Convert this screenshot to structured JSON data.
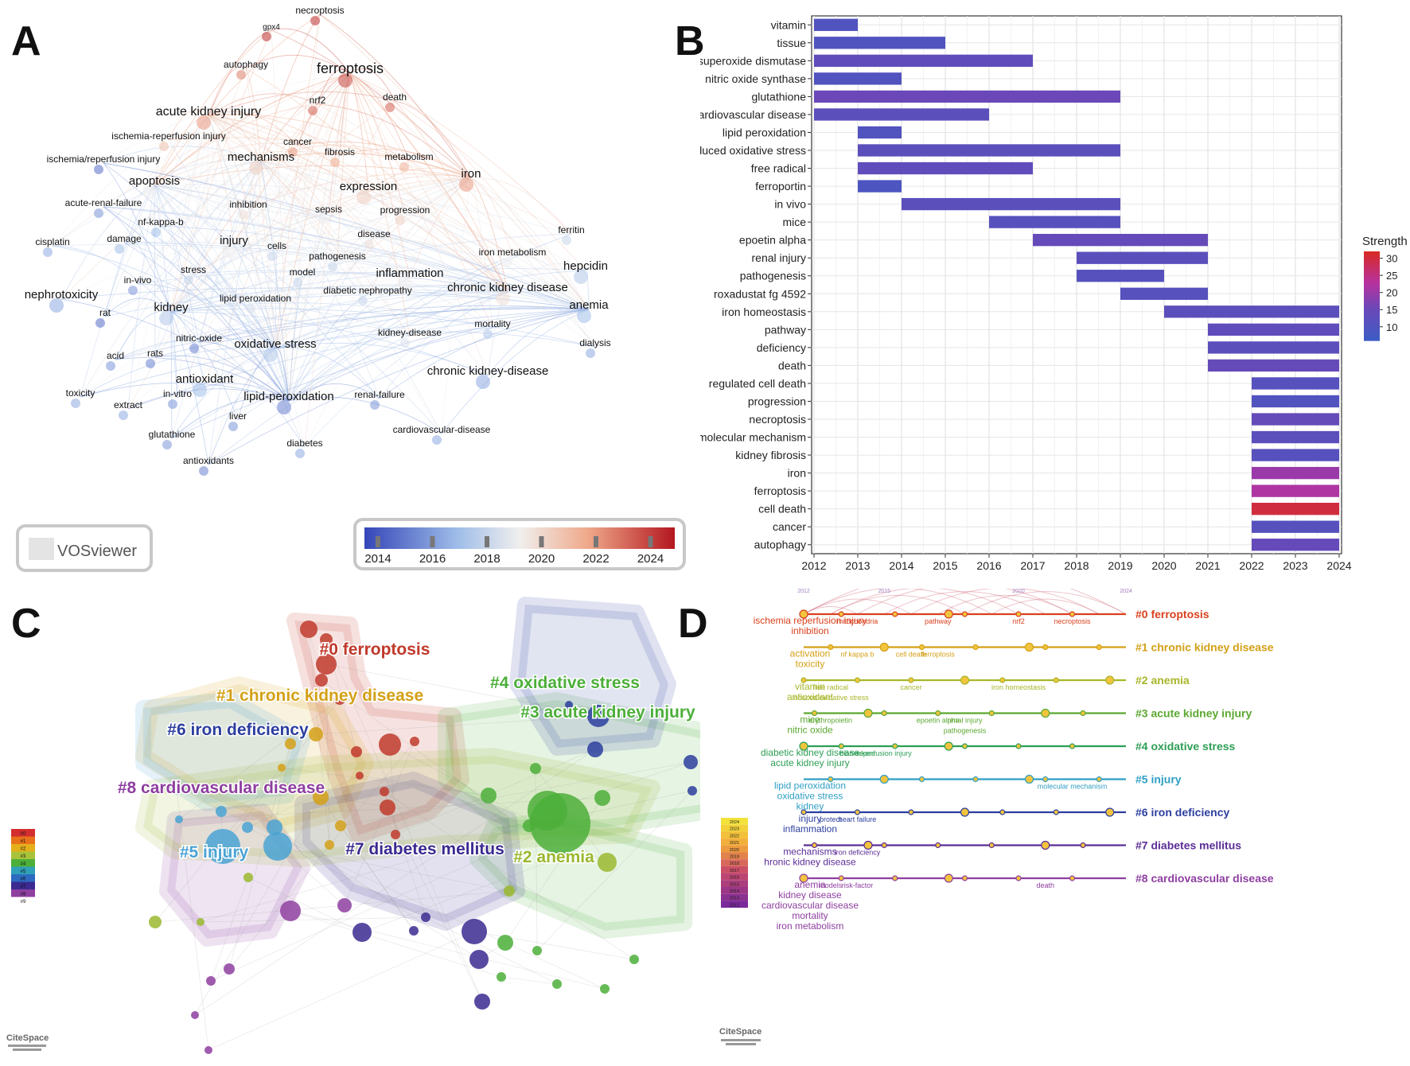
{
  "panels": {
    "A": "A",
    "B": "B",
    "C": "C",
    "D": "D"
  },
  "chart_data": [
    {
      "type": "network",
      "panel": "A",
      "tool": "VOSviewer",
      "colorbar": {
        "ticks": [
          "2014",
          "2016",
          "2018",
          "2020",
          "2022",
          "2024"
        ]
      },
      "nodes": [
        {
          "label": "necroptosis",
          "year": 2023.5
        },
        {
          "label": "gpx4",
          "year": 2023.5
        },
        {
          "label": "autophagy",
          "year": 2022
        },
        {
          "label": "ferroptosis",
          "year": 2023
        },
        {
          "label": "nrf2",
          "year": 2022.5
        },
        {
          "label": "death",
          "year": 2022.5
        },
        {
          "label": "acute kidney injury",
          "year": 2021.5
        },
        {
          "label": "ischemia-reperfusion injury",
          "year": 2020.5
        },
        {
          "label": "cancer",
          "year": 2021.5
        },
        {
          "label": "ischemia/reperfusion injury",
          "year": 2015
        },
        {
          "label": "mechanisms",
          "year": 2020
        },
        {
          "label": "fibrosis",
          "year": 2021
        },
        {
          "label": "metabolism",
          "year": 2021
        },
        {
          "label": "iron",
          "year": 2021.5
        },
        {
          "label": "apoptosis",
          "year": 2019
        },
        {
          "label": "expression",
          "year": 2020
        },
        {
          "label": "acute-renal-failure",
          "year": 2016
        },
        {
          "label": "inhibition",
          "year": 2019.5
        },
        {
          "label": "sepsis",
          "year": 2019
        },
        {
          "label": "progression",
          "year": 2020
        },
        {
          "label": "nf-kappa-b",
          "year": 2017
        },
        {
          "label": "ferritin",
          "year": 2018
        },
        {
          "label": "cisplatin",
          "year": 2016.5
        },
        {
          "label": "damage",
          "year": 2017
        },
        {
          "label": "injury",
          "year": 2019
        },
        {
          "label": "cells",
          "year": 2018
        },
        {
          "label": "disease",
          "year": 2019.5
        },
        {
          "label": "iron metabolism",
          "year": 2019
        },
        {
          "label": "pathogenesis",
          "year": 2018
        },
        {
          "label": "hepcidin",
          "year": 2017.5
        },
        {
          "label": "stress",
          "year": 2018
        },
        {
          "label": "inflammation",
          "year": 2019
        },
        {
          "label": "in-vivo",
          "year": 2016
        },
        {
          "label": "model",
          "year": 2018
        },
        {
          "label": "nephrotoxicity",
          "year": 2016.5
        },
        {
          "label": "chronic kidney disease",
          "year": 2019.5
        },
        {
          "label": "lipid peroxidation",
          "year": 2018.5
        },
        {
          "label": "diabetic nephropathy",
          "year": 2018
        },
        {
          "label": "rat",
          "year": 2015
        },
        {
          "label": "kidney",
          "year": 2017.5
        },
        {
          "label": "anemia",
          "year": 2017
        },
        {
          "label": "mortality",
          "year": 2017.5
        },
        {
          "label": "kidney-disease",
          "year": 2018.5
        },
        {
          "label": "nitric-oxide",
          "year": 2015.5
        },
        {
          "label": "oxidative stress",
          "year": 2017.5
        },
        {
          "label": "dialysis",
          "year": 2016.5
        },
        {
          "label": "acid",
          "year": 2016
        },
        {
          "label": "rats",
          "year": 2015.5
        },
        {
          "label": "antioxidant",
          "year": 2017
        },
        {
          "label": "chronic kidney-disease",
          "year": 2016.5
        },
        {
          "label": "toxicity",
          "year": 2016.5
        },
        {
          "label": "in-vitro",
          "year": 2016
        },
        {
          "label": "lipid-peroxidation",
          "year": 2015.5
        },
        {
          "label": "renal-failure",
          "year": 2016
        },
        {
          "label": "extract",
          "year": 2016.5
        },
        {
          "label": "liver",
          "year": 2016
        },
        {
          "label": "glutathione",
          "year": 2016
        },
        {
          "label": "cardiovascular-disease",
          "year": 2016.5
        },
        {
          "label": "diabetes",
          "year": 2016.5
        },
        {
          "label": "antioxidants",
          "year": 2015.5
        }
      ]
    },
    {
      "type": "bar",
      "panel": "B",
      "subtype": "gantt-burst",
      "xlim": [
        2012,
        2024
      ],
      "xticks": [
        "2012",
        "2013",
        "2014",
        "2015",
        "2016",
        "2017",
        "2018",
        "2019",
        "2020",
        "2021",
        "2022",
        "2023",
        "2024"
      ],
      "legend_title": "Strength",
      "legend_ticks": [
        "30",
        "25",
        "20",
        "15",
        "10"
      ],
      "strength_range": [
        6,
        32
      ],
      "bursts": [
        {
          "keyword": "vitamin",
          "begin": 2012,
          "end": 2013,
          "strength": 10
        },
        {
          "keyword": "tissue",
          "begin": 2012,
          "end": 2015,
          "strength": 10
        },
        {
          "keyword": "superoxide dismutase",
          "begin": 2012,
          "end": 2017,
          "strength": 13
        },
        {
          "keyword": "nitric oxide synthase",
          "begin": 2012,
          "end": 2014,
          "strength": 10
        },
        {
          "keyword": "glutathione",
          "begin": 2012,
          "end": 2019,
          "strength": 15
        },
        {
          "keyword": "cardiovascular disease",
          "begin": 2012,
          "end": 2016,
          "strength": 12
        },
        {
          "keyword": "lipid peroxidation",
          "begin": 2013,
          "end": 2014,
          "strength": 10
        },
        {
          "keyword": "induced oxidative stress",
          "begin": 2013,
          "end": 2019,
          "strength": 12
        },
        {
          "keyword": "free radical",
          "begin": 2013,
          "end": 2017,
          "strength": 13
        },
        {
          "keyword": "ferroportin",
          "begin": 2013,
          "end": 2014,
          "strength": 9
        },
        {
          "keyword": "in vivo",
          "begin": 2014,
          "end": 2019,
          "strength": 12
        },
        {
          "keyword": "mice",
          "begin": 2016,
          "end": 2019,
          "strength": 11
        },
        {
          "keyword": "epoetin alpha",
          "begin": 2017,
          "end": 2021,
          "strength": 14
        },
        {
          "keyword": "renal injury",
          "begin": 2018,
          "end": 2021,
          "strength": 12
        },
        {
          "keyword": "pathogenesis",
          "begin": 2018,
          "end": 2020,
          "strength": 11
        },
        {
          "keyword": "roxadustat fg 4592",
          "begin": 2019,
          "end": 2021,
          "strength": 11
        },
        {
          "keyword": "iron homeostasis",
          "begin": 2020,
          "end": 2024,
          "strength": 12
        },
        {
          "keyword": "pathway",
          "begin": 2021,
          "end": 2024,
          "strength": 13
        },
        {
          "keyword": "deficiency",
          "begin": 2021,
          "end": 2024,
          "strength": 12
        },
        {
          "keyword": "death",
          "begin": 2021,
          "end": 2024,
          "strength": 14
        },
        {
          "keyword": "regulated cell death",
          "begin": 2022,
          "end": 2024,
          "strength": 11
        },
        {
          "keyword": "progression",
          "begin": 2022,
          "end": 2024,
          "strength": 10
        },
        {
          "keyword": "necroptosis",
          "begin": 2022,
          "end": 2024,
          "strength": 14
        },
        {
          "keyword": "molecular mechanism",
          "begin": 2022,
          "end": 2024,
          "strength": 12
        },
        {
          "keyword": "kidney fibrosis",
          "begin": 2022,
          "end": 2024,
          "strength": 11
        },
        {
          "keyword": "iron",
          "begin": 2022,
          "end": 2024,
          "strength": 20
        },
        {
          "keyword": "ferroptosis",
          "begin": 2022,
          "end": 2024,
          "strength": 22
        },
        {
          "keyword": "cell death",
          "begin": 2022,
          "end": 2024,
          "strength": 30
        },
        {
          "keyword": "cancer",
          "begin": 2022,
          "end": 2024,
          "strength": 11
        },
        {
          "keyword": "autophagy",
          "begin": 2022,
          "end": 2024,
          "strength": 14
        }
      ]
    },
    {
      "type": "network",
      "panel": "C",
      "tool": "CiteSpace",
      "legend_labels": [
        "#0",
        "#1",
        "#2",
        "#3",
        "#4",
        "#5",
        "#6",
        "#7",
        "#8",
        "#9"
      ],
      "clusters": [
        {
          "label": "#0 ferroptosis",
          "color": "#c0392b"
        },
        {
          "label": "#1 chronic kidney disease",
          "color": "#d4a017"
        },
        {
          "label": "#4 oxidative stress",
          "color": "#4caf3a"
        },
        {
          "label": "#3 acute kidney injury",
          "color": "#4caf3a"
        },
        {
          "label": "#6 iron deficiency",
          "color": "#2c3e9e"
        },
        {
          "label": "#8 cardiovascular disease",
          "color": "#8e3fa0"
        },
        {
          "label": "#5 injury",
          "color": "#4aa3d4"
        },
        {
          "label": "#7 diabetes mellitus",
          "color": "#3b2a90"
        },
        {
          "label": "#2 anemia",
          "color": "#9ab82f"
        }
      ]
    },
    {
      "type": "timeline",
      "panel": "D",
      "tool": "CiteSpace",
      "year_marks": [
        "2012",
        "2015",
        "2020",
        "2024"
      ],
      "legend_years": [
        "2024",
        "2023",
        "2022",
        "2021",
        "2020",
        "2019",
        "2018",
        "2017",
        "2016",
        "2015",
        "2014",
        "2013",
        "2012"
      ],
      "clusters": [
        {
          "label": "#0 ferroptosis",
          "color": "#d9411e"
        },
        {
          "label": "#1 chronic kidney disease",
          "color": "#d4a017"
        },
        {
          "label": "#2 anemia",
          "color": "#a8b62a"
        },
        {
          "label": "#3 acute kidney injury",
          "color": "#5ca832"
        },
        {
          "label": "#4 oxidative stress",
          "color": "#2e9e55"
        },
        {
          "label": "#5 injury",
          "color": "#2f9ec4"
        },
        {
          "label": "#6 iron deficiency",
          "color": "#2c3e9e"
        },
        {
          "label": "#7 diabetes mellitus",
          "color": "#5b2d96"
        },
        {
          "label": "#8 cardiovascular disease",
          "color": "#8e3fa0"
        }
      ],
      "terms": [
        {
          "label": "ischemia reperfusion injury",
          "year": 2012,
          "cluster": 0
        },
        {
          "label": "inhibition",
          "year": 2012,
          "cluster": 0
        },
        {
          "label": "mitochondria",
          "year": 2014,
          "cluster": 0
        },
        {
          "label": "pathway",
          "year": 2017,
          "cluster": 0
        },
        {
          "label": "nrf2",
          "year": 2020,
          "cluster": 0
        },
        {
          "label": "necroptosis",
          "year": 2022,
          "cluster": 0
        },
        {
          "label": "activation",
          "year": 2012,
          "cluster": 1
        },
        {
          "label": "nf kappa b",
          "year": 2014,
          "cluster": 1
        },
        {
          "label": "cell death",
          "year": 2016,
          "cluster": 1
        },
        {
          "label": "ferroptosis",
          "year": 2017,
          "cluster": 1
        },
        {
          "label": "toxicity",
          "year": 2012,
          "cluster": 1
        },
        {
          "label": "vitamin",
          "year": 2012,
          "cluster": 2
        },
        {
          "label": "free radical",
          "year": 2013,
          "cluster": 2
        },
        {
          "label": "induced oxidative stress",
          "year": 2013,
          "cluster": 2
        },
        {
          "label": "cancer",
          "year": 2016,
          "cluster": 2
        },
        {
          "label": "iron homeostasis",
          "year": 2020,
          "cluster": 2
        },
        {
          "label": "antioxidant",
          "year": 2012,
          "cluster": 2
        },
        {
          "label": "erythropoietin",
          "year": 2013,
          "cluster": 3
        },
        {
          "label": "epoetin alpha",
          "year": 2017,
          "cluster": 3
        },
        {
          "label": "mice",
          "year": 2012,
          "cluster": 3
        },
        {
          "label": "nitric oxide",
          "year": 2012,
          "cluster": 3
        },
        {
          "label": "renal injury",
          "year": 2018,
          "cluster": 3
        },
        {
          "label": "pathogenesis",
          "year": 2018,
          "cluster": 3
        },
        {
          "label": "biomarkers",
          "year": 2014,
          "cluster": 4
        },
        {
          "label": "reperfusion injury",
          "year": 2015,
          "cluster": 4
        },
        {
          "label": "diabetic kidney disease",
          "year": 2012,
          "cluster": 4
        },
        {
          "label": "acute kidney injury",
          "year": 2012,
          "cluster": 4
        },
        {
          "label": "lipid peroxidation",
          "year": 2012,
          "cluster": 5
        },
        {
          "label": "oxidative stress",
          "year": 2012,
          "cluster": 5
        },
        {
          "label": "kidney",
          "year": 2012,
          "cluster": 5
        },
        {
          "label": "injury",
          "year": 2012,
          "cluster": 6
        },
        {
          "label": "protect",
          "year": 2013,
          "cluster": 6
        },
        {
          "label": "molecular mechanism",
          "year": 2022,
          "cluster": 5
        },
        {
          "label": "inflammation",
          "year": 2012,
          "cluster": 6
        },
        {
          "label": "heart failure",
          "year": 2014,
          "cluster": 6
        },
        {
          "label": "mechanisms",
          "year": 2012,
          "cluster": 7
        },
        {
          "label": "iron deficiency",
          "year": 2014,
          "cluster": 7
        },
        {
          "label": "hronic kidney disease",
          "year": 2012,
          "cluster": 7
        },
        {
          "label": "anemia",
          "year": 2012,
          "cluster": 8
        },
        {
          "label": "models",
          "year": 2013,
          "cluster": 8
        },
        {
          "label": "risk-factor",
          "year": 2014,
          "cluster": 8
        },
        {
          "label": "kidney disease",
          "year": 2012,
          "cluster": 8
        },
        {
          "label": "cardiovascular disease",
          "year": 2012,
          "cluster": 8
        },
        {
          "label": "mortality",
          "year": 2012,
          "cluster": 8
        },
        {
          "label": "iron metabolism",
          "year": 2012,
          "cluster": 8
        },
        {
          "label": "death",
          "year": 2021,
          "cluster": 8
        }
      ]
    }
  ],
  "logos": {
    "vosviewer": "VOSviewer",
    "citespace": "CiteSpace"
  }
}
